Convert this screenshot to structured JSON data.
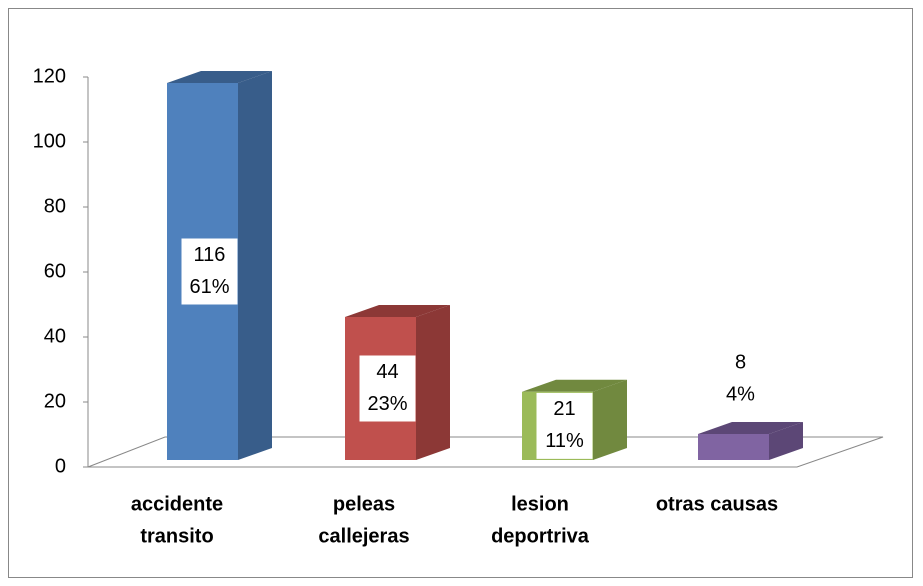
{
  "chart_data": {
    "type": "bar3d",
    "categories": [
      [
        "accidente",
        "transito"
      ],
      [
        "peleas",
        "callejeras"
      ],
      [
        "lesion",
        "deportriva"
      ],
      [
        "otras causas"
      ]
    ],
    "values": [
      116,
      44,
      21,
      8
    ],
    "percent_labels": [
      "61%",
      "23%",
      "11%",
      "4%"
    ],
    "colors": [
      "#4f81bd",
      "#c0504d",
      "#9bbb59",
      "#8064a2"
    ],
    "side_colors": [
      "#385d8a",
      "#8c3836",
      "#71893f",
      "#5c4776"
    ],
    "ylim": [
      0,
      120
    ],
    "yticks": [
      0,
      20,
      40,
      60,
      80,
      100,
      120
    ]
  }
}
